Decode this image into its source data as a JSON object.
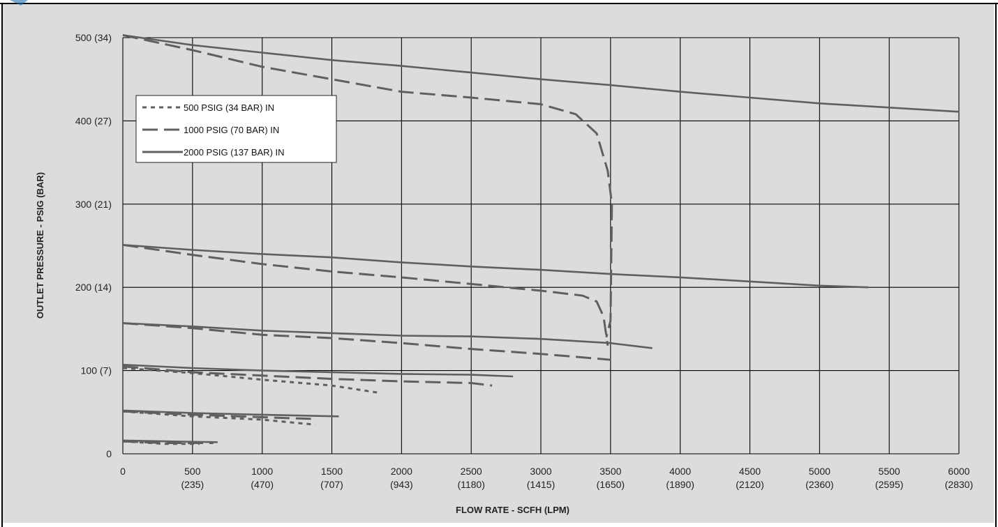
{
  "chart_data": {
    "type": "line",
    "title": "",
    "xlabel": "FLOW RATE - SCFH (LPM)",
    "ylabel": "OUTLET PRESSURE - PSIG (BAR)",
    "xlim": [
      0,
      6000
    ],
    "ylim": [
      0,
      500
    ],
    "grid": true,
    "legend_position": "top-left",
    "x_ticks": [
      {
        "value": 0,
        "label": "0",
        "sub": ""
      },
      {
        "value": 500,
        "label": "500",
        "sub": "(235)"
      },
      {
        "value": 1000,
        "label": "1000",
        "sub": "(470)"
      },
      {
        "value": 1500,
        "label": "1500",
        "sub": "(707)"
      },
      {
        "value": 2000,
        "label": "2000",
        "sub": "(943)"
      },
      {
        "value": 2500,
        "label": "2500",
        "sub": "(1180)"
      },
      {
        "value": 3000,
        "label": "3000",
        "sub": "(1415)"
      },
      {
        "value": 3500,
        "label": "3500",
        "sub": "(1650)"
      },
      {
        "value": 4000,
        "label": "4000",
        "sub": "(1890)"
      },
      {
        "value": 4500,
        "label": "4500",
        "sub": "(2120)"
      },
      {
        "value": 5000,
        "label": "5000",
        "sub": "(2360)"
      },
      {
        "value": 5500,
        "label": "5500",
        "sub": "(2595)"
      },
      {
        "value": 6000,
        "label": "6000",
        "sub": "(2830)"
      }
    ],
    "y_ticks": [
      {
        "value": 0,
        "label": "0"
      },
      {
        "value": 100,
        "label": "100 (7)"
      },
      {
        "value": 200,
        "label": "200 (14)"
      },
      {
        "value": 300,
        "label": "300 (21)"
      },
      {
        "value": 400,
        "label": "400 (27)"
      },
      {
        "value": 500,
        "label": "500 (34)"
      }
    ],
    "legend": [
      {
        "label": "500 PSIG (34 BAR) IN",
        "style": "dotted"
      },
      {
        "label": "1000 PSIG (70 BAR) IN",
        "style": "dashed"
      },
      {
        "label": "2000 PSIG (137 BAR) IN",
        "style": "solid"
      }
    ],
    "series": [
      {
        "inlet": "2000 PSIG (137 BAR) IN",
        "style": "solid",
        "points": [
          [
            0,
            503
          ],
          [
            500,
            491
          ],
          [
            1000,
            482
          ],
          [
            1500,
            473
          ],
          [
            2000,
            466
          ],
          [
            2500,
            458
          ],
          [
            3000,
            450
          ],
          [
            3500,
            443
          ],
          [
            4000,
            435
          ],
          [
            4500,
            428
          ],
          [
            5000,
            421
          ],
          [
            5500,
            416
          ],
          [
            6000,
            411
          ]
        ]
      },
      {
        "inlet": "1000 PSIG (70 BAR) IN",
        "style": "dashed",
        "points": [
          [
            0,
            503
          ],
          [
            500,
            485
          ],
          [
            1000,
            465
          ],
          [
            1500,
            450
          ],
          [
            2000,
            435
          ],
          [
            2500,
            428
          ],
          [
            3000,
            420
          ],
          [
            3250,
            408
          ],
          [
            3400,
            385
          ],
          [
            3480,
            340
          ],
          [
            3510,
            300
          ],
          [
            3500,
            160
          ],
          [
            3470,
            140
          ]
        ]
      },
      {
        "inlet": "2000 PSIG (137 BAR) IN",
        "style": "solid",
        "points": [
          [
            0,
            251
          ],
          [
            500,
            245
          ],
          [
            1000,
            240
          ],
          [
            1500,
            236
          ],
          [
            2000,
            230
          ],
          [
            2500,
            225
          ],
          [
            3000,
            221
          ],
          [
            3500,
            216
          ],
          [
            4000,
            212
          ],
          [
            4500,
            207
          ],
          [
            5000,
            202
          ],
          [
            5350,
            200
          ]
        ]
      },
      {
        "inlet": "1000 PSIG (70 BAR) IN",
        "style": "dashed",
        "points": [
          [
            0,
            251
          ],
          [
            500,
            239
          ],
          [
            1000,
            228
          ],
          [
            1500,
            219
          ],
          [
            2000,
            212
          ],
          [
            2500,
            204
          ],
          [
            3000,
            196
          ],
          [
            3300,
            190
          ],
          [
            3400,
            183
          ],
          [
            3450,
            165
          ],
          [
            3480,
            130
          ]
        ]
      },
      {
        "inlet": "2000 PSIG (137 BAR) IN",
        "style": "solid",
        "points": [
          [
            0,
            157
          ],
          [
            500,
            153
          ],
          [
            1000,
            148
          ],
          [
            1500,
            145
          ],
          [
            2000,
            142
          ],
          [
            2500,
            141
          ],
          [
            3000,
            138
          ],
          [
            3500,
            133
          ],
          [
            3800,
            127
          ]
        ]
      },
      {
        "inlet": "1000 PSIG (70 BAR) IN",
        "style": "dashed",
        "points": [
          [
            0,
            157
          ],
          [
            500,
            151
          ],
          [
            1000,
            143
          ],
          [
            1500,
            139
          ],
          [
            2000,
            133
          ],
          [
            2500,
            126
          ],
          [
            3000,
            120
          ],
          [
            3500,
            113
          ]
        ]
      },
      {
        "inlet": "2000 PSIG (137 BAR) IN",
        "style": "solid",
        "points": [
          [
            0,
            107
          ],
          [
            500,
            103
          ],
          [
            1000,
            100
          ],
          [
            1500,
            98
          ],
          [
            2000,
            96
          ],
          [
            2500,
            95
          ],
          [
            2800,
            93
          ]
        ]
      },
      {
        "inlet": "1000 PSIG (70 BAR) IN",
        "style": "dashed",
        "points": [
          [
            0,
            105
          ],
          [
            500,
            98
          ],
          [
            1000,
            94
          ],
          [
            1500,
            90
          ],
          [
            2000,
            87
          ],
          [
            2500,
            85
          ],
          [
            2650,
            82
          ]
        ]
      },
      {
        "inlet": "500 PSIG (34 BAR) IN",
        "style": "dotted",
        "points": [
          [
            0,
            103
          ],
          [
            500,
            97
          ],
          [
            1000,
            89
          ],
          [
            1500,
            82
          ],
          [
            1850,
            73
          ]
        ]
      },
      {
        "inlet": "2000 PSIG (137 BAR) IN",
        "style": "solid",
        "points": [
          [
            0,
            52
          ],
          [
            500,
            49
          ],
          [
            1000,
            47
          ],
          [
            1550,
            45
          ]
        ]
      },
      {
        "inlet": "1000 PSIG (70 BAR) IN",
        "style": "dashed",
        "points": [
          [
            0,
            51
          ],
          [
            500,
            47
          ],
          [
            1000,
            44
          ],
          [
            1350,
            42
          ]
        ]
      },
      {
        "inlet": "500 PSIG (34 BAR) IN",
        "style": "dotted",
        "points": [
          [
            0,
            51
          ],
          [
            500,
            45
          ],
          [
            1000,
            41
          ],
          [
            1380,
            35
          ]
        ]
      },
      {
        "inlet": "2000 PSIG (137 BAR) IN",
        "style": "solid",
        "points": [
          [
            0,
            16
          ],
          [
            300,
            15
          ],
          [
            680,
            14
          ]
        ]
      },
      {
        "inlet": "1000 PSIG (70 BAR) IN",
        "style": "dashed",
        "points": [
          [
            0,
            15
          ],
          [
            300,
            13
          ],
          [
            650,
            13
          ]
        ]
      },
      {
        "inlet": "500 PSIG (34 BAR) IN",
        "style": "dotted",
        "points": [
          [
            0,
            15
          ],
          [
            300,
            12
          ],
          [
            550,
            12
          ]
        ]
      }
    ],
    "colors": {
      "background": "#dcdcdc",
      "grid": "#000000",
      "series": "#5f5f5f",
      "frame": "#000000"
    }
  }
}
